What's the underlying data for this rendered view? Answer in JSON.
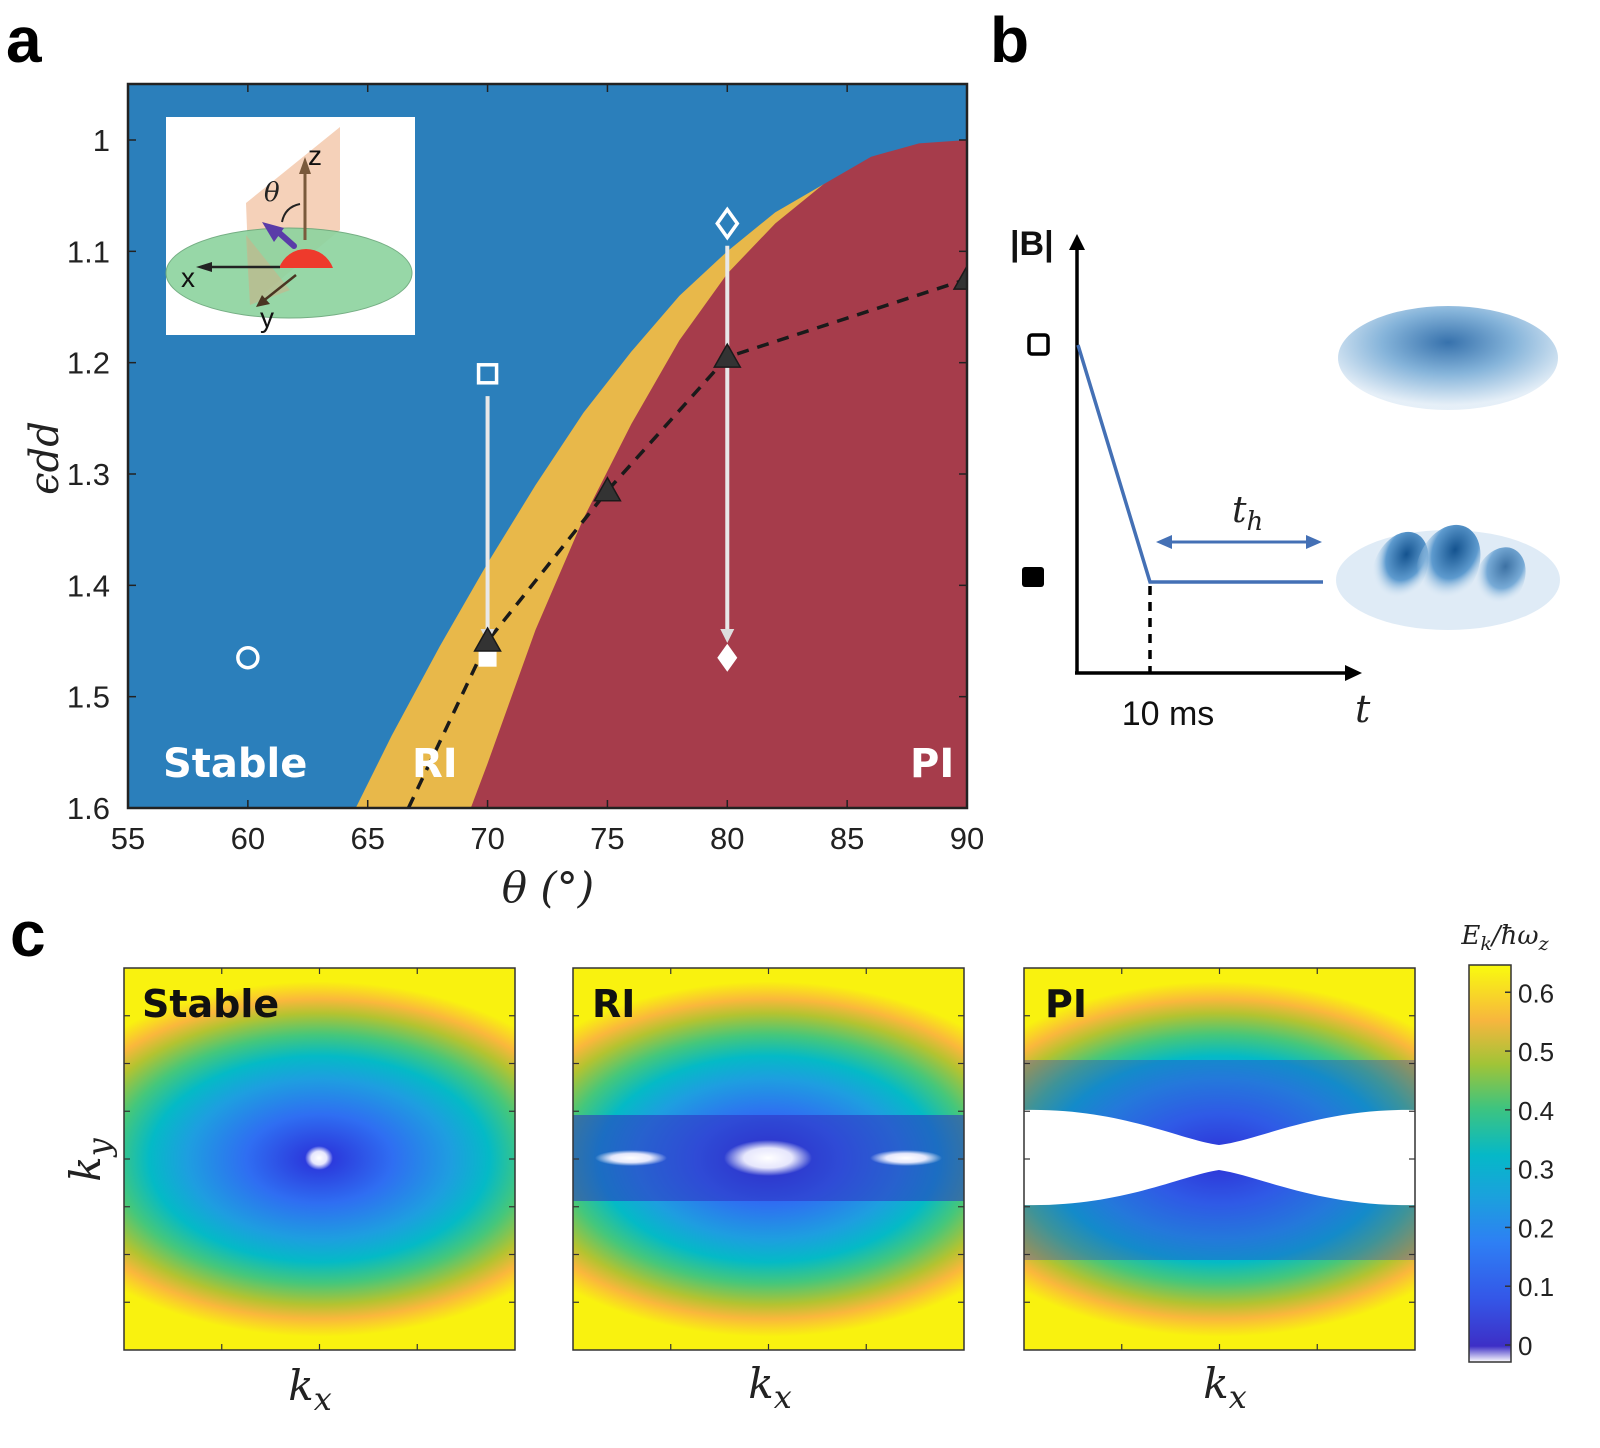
{
  "panel_letters": {
    "a": "a",
    "b": "b",
    "c": "c"
  },
  "colors": {
    "stable": "#2b7fbb",
    "ri": "#e8b84a",
    "pi": "#a63c4b",
    "marker_dark": "#333333",
    "curve_b": "#4470b5"
  },
  "chart_data": [
    {
      "type": "phase-diagram",
      "panel": "a",
      "xlabel": "θ (°)",
      "ylabel": "ϵdd",
      "xlim": [
        55,
        90
      ],
      "ylim": [
        1.6,
        0.95
      ],
      "y_reversed": true,
      "xticks": [
        55,
        60,
        65,
        70,
        75,
        80,
        85,
        90
      ],
      "xtick_labels": [
        "55",
        "60",
        "65",
        "70",
        "75",
        "80",
        "85",
        "90"
      ],
      "yticks": [
        1.0,
        1.1,
        1.2,
        1.3,
        1.4,
        1.5,
        1.6
      ],
      "ytick_labels": [
        "1",
        "1.1",
        "1.2",
        "1.3",
        "1.4",
        "1.5",
        "1.6"
      ],
      "regions": [
        {
          "name": "Stable",
          "label": "Stable"
        },
        {
          "name": "RI",
          "label": "RI"
        },
        {
          "name": "PI",
          "label": "PI"
        }
      ],
      "boundary_stable_ri": {
        "x": [
          64.5,
          66,
          68,
          70,
          72,
          74,
          76,
          78,
          80,
          82,
          84,
          86,
          88,
          90
        ],
        "y": [
          1.6,
          1.535,
          1.455,
          1.38,
          1.31,
          1.245,
          1.19,
          1.14,
          1.1,
          1.065,
          1.04,
          1.02,
          1.005,
          1.0
        ]
      },
      "boundary_ri_pi": {
        "x": [
          69.3,
          70,
          71,
          72,
          74,
          76,
          78,
          80,
          82,
          84,
          86,
          88,
          90
        ],
        "y": [
          1.6,
          1.56,
          1.5,
          1.44,
          1.34,
          1.255,
          1.18,
          1.12,
          1.075,
          1.04,
          1.015,
          1.003,
          1.0
        ]
      },
      "series": [
        {
          "name": "threshold",
          "marker": "triangle",
          "line": "dashed",
          "x": [
            66.7,
            70,
            75,
            80,
            90
          ],
          "y": [
            1.6,
            1.45,
            1.315,
            1.195,
            1.125
          ]
        }
      ],
      "markers": [
        {
          "name": "open-circle",
          "x": 60,
          "y": 1.465,
          "shape": "circle",
          "filled": false
        },
        {
          "name": "open-square",
          "x": 70,
          "y": 1.21,
          "shape": "square",
          "filled": false
        },
        {
          "name": "filled-square",
          "x": 70,
          "y": 1.465,
          "shape": "square",
          "filled": true
        },
        {
          "name": "open-diamond",
          "x": 80,
          "y": 1.075,
          "shape": "diamond",
          "filled": false
        },
        {
          "name": "filled-diamond",
          "x": 80,
          "y": 1.465,
          "shape": "diamond",
          "filled": true
        }
      ],
      "arrows": [
        {
          "x": 70,
          "from": 1.23,
          "to": 1.45
        },
        {
          "x": 80,
          "from": 1.095,
          "to": 1.45
        }
      ],
      "inset_labels": {
        "x": "x",
        "y": "y",
        "z": "z",
        "theta": "θ"
      }
    },
    {
      "type": "schematic-line",
      "panel": "b",
      "ylabel": "|B|",
      "xlabel": "t",
      "ramp_label": "10 ms",
      "hold_label_main": "t",
      "hold_label_sub": "h",
      "levels": [
        {
          "marker": "open-square"
        },
        {
          "marker": "filled-square"
        }
      ]
    },
    {
      "type": "heatmap",
      "panel": "c",
      "xlabel_main": "k",
      "xlabel_sub": "x",
      "ylabel_main": "k",
      "ylabel_sub": "y",
      "maps": [
        {
          "title": "Stable"
        },
        {
          "title": "RI"
        },
        {
          "title": "PI"
        }
      ],
      "colorbar": {
        "title": "E_k/ħω_z",
        "title_main": "E",
        "title_sub1": "k",
        "title_mid": "/ħω",
        "title_sub2": "z",
        "range": [
          0,
          0.66
        ],
        "ticks": [
          0,
          0.1,
          0.2,
          0.3,
          0.4,
          0.5,
          0.6
        ],
        "tick_labels": [
          "0",
          "0.1",
          "0.2",
          "0.3",
          "0.4",
          "0.5",
          "0.6"
        ]
      }
    }
  ]
}
